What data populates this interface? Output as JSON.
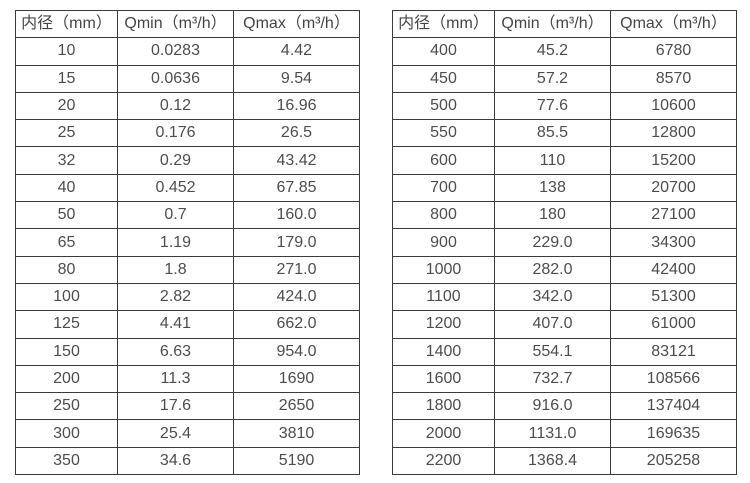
{
  "colors": {
    "border": "#3b3b3b",
    "text": "#4d4d4d",
    "background": "#ffffff"
  },
  "chart_data": [
    {
      "type": "table",
      "title": "",
      "columns": [
        "内径（mm）",
        "Qmin（m³/h）",
        "Qmax（m³/h）"
      ],
      "rows": [
        [
          "10",
          "0.0283",
          "4.42"
        ],
        [
          "15",
          "0.0636",
          "9.54"
        ],
        [
          "20",
          "0.12",
          "16.96"
        ],
        [
          "25",
          "0.176",
          "26.5"
        ],
        [
          "32",
          "0.29",
          "43.42"
        ],
        [
          "40",
          "0.452",
          "67.85"
        ],
        [
          "50",
          "0.7",
          "160.0"
        ],
        [
          "65",
          "1.19",
          "179.0"
        ],
        [
          "80",
          "1.8",
          "271.0"
        ],
        [
          "100",
          "2.82",
          "424.0"
        ],
        [
          "125",
          "4.41",
          "662.0"
        ],
        [
          "150",
          "6.63",
          "954.0"
        ],
        [
          "200",
          "11.3",
          "1690"
        ],
        [
          "250",
          "17.6",
          "2650"
        ],
        [
          "300",
          "25.4",
          "3810"
        ],
        [
          "350",
          "34.6",
          "5190"
        ]
      ]
    },
    {
      "type": "table",
      "title": "",
      "columns": [
        "内径（mm）",
        "Qmin（m³/h）",
        "Qmax（m³/h）"
      ],
      "rows": [
        [
          "400",
          "45.2",
          "6780"
        ],
        [
          "450",
          "57.2",
          "8570"
        ],
        [
          "500",
          "77.6",
          "10600"
        ],
        [
          "550",
          "85.5",
          "12800"
        ],
        [
          "600",
          "110",
          "15200"
        ],
        [
          "700",
          "138",
          "20700"
        ],
        [
          "800",
          "180",
          "27100"
        ],
        [
          "900",
          "229.0",
          "34300"
        ],
        [
          "1000",
          "282.0",
          "42400"
        ],
        [
          "1100",
          "342.0",
          "51300"
        ],
        [
          "1200",
          "407.0",
          "61000"
        ],
        [
          "1400",
          "554.1",
          "83121"
        ],
        [
          "1600",
          "732.7",
          "108566"
        ],
        [
          "1800",
          "916.0",
          "137404"
        ],
        [
          "2000",
          "1131.0",
          "169635"
        ],
        [
          "2200",
          "1368.4",
          "205258"
        ]
      ]
    }
  ]
}
